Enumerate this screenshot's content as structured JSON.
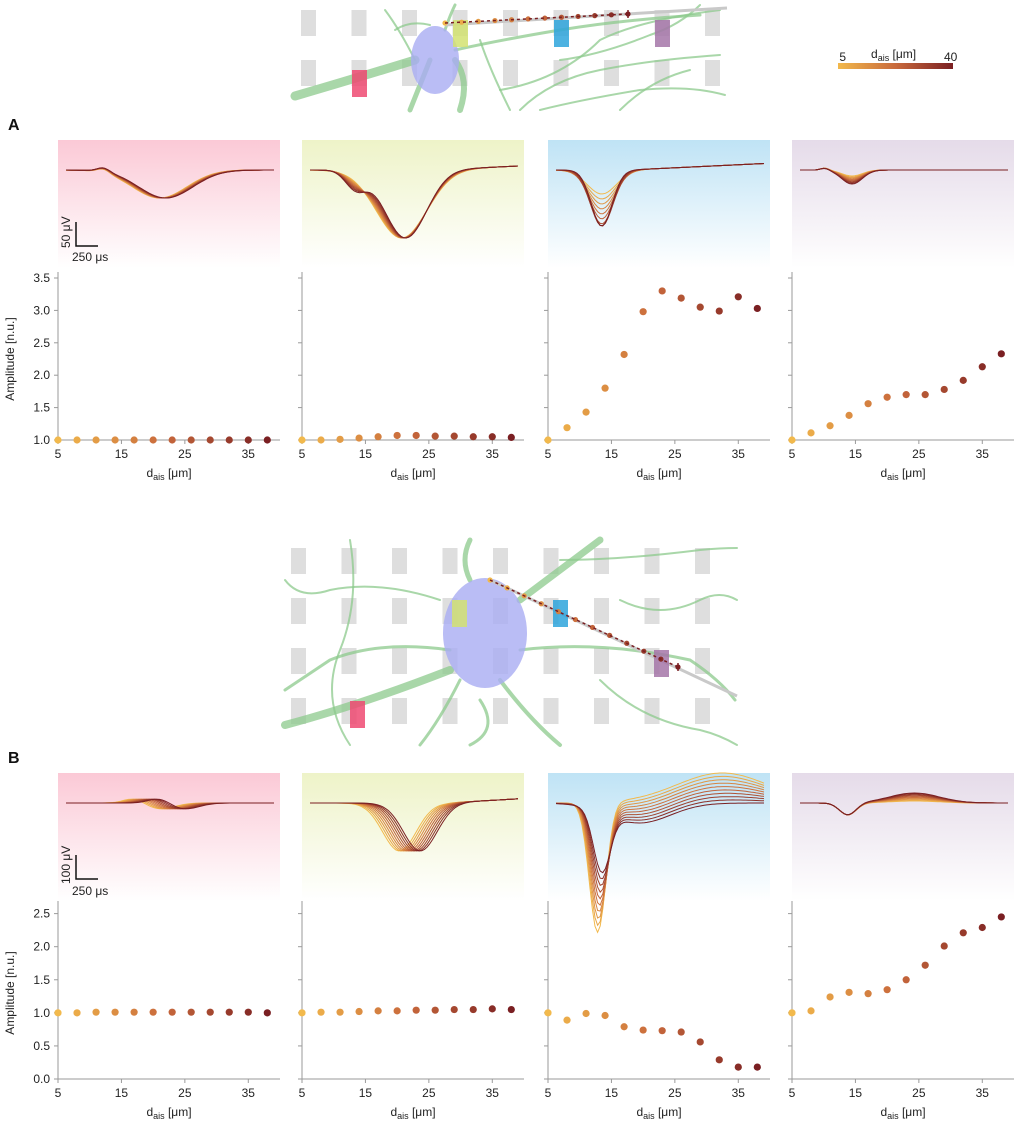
{
  "colors": {
    "scale_start": "#f2b94c",
    "scale_end": "#7a1f22",
    "electrode_red": "#ee4a72",
    "electrode_yellow": "#d2e271",
    "electrode_blue": "#2ea4dc",
    "electrode_purple": "#a576a8",
    "soma": "#a9acf3",
    "dendrite": "#8cc98c",
    "grid_pad": "#dedede",
    "axis": "#9a9a9a"
  },
  "colorbar": {
    "label_main": "d",
    "label_sub": "ais",
    "label_unit": " [μm]",
    "min_label": "5",
    "max_label": "40"
  },
  "panels": [
    {
      "letter": "A",
      "scalebar": {
        "voltage": "50 μV",
        "time": "250 μs"
      }
    },
    {
      "letter": "B",
      "scalebar": {
        "voltage": "100 μV",
        "time": "250 μs"
      }
    }
  ],
  "chart_data": [
    {
      "type": "scatter",
      "panel": "A",
      "ylabel": "Amplitude [n.u.]",
      "xlabel_main": "d",
      "xlabel_sub": "ais",
      "xlabel_unit": " [μm]",
      "xlim": [
        5,
        40
      ],
      "xticks": [
        "5",
        "15",
        "25",
        "35"
      ],
      "ylim": [
        1.0,
        3.5
      ],
      "yticks": [
        "1.0",
        "1.5",
        "2.0",
        "2.5",
        "3.0",
        "3.5"
      ],
      "x": [
        5,
        8,
        11,
        14,
        17,
        20,
        23,
        26,
        29,
        32,
        35,
        38
      ],
      "series": [
        {
          "name": "red electrode",
          "values": [
            1.0,
            1.0,
            1.0,
            1.0,
            1.0,
            1.0,
            1.0,
            1.0,
            1.0,
            1.0,
            1.0,
            1.0
          ]
        },
        {
          "name": "yellow electrode",
          "values": [
            1.0,
            1.0,
            1.01,
            1.03,
            1.05,
            1.07,
            1.07,
            1.06,
            1.06,
            1.05,
            1.05,
            1.04
          ]
        },
        {
          "name": "blue electrode",
          "values": [
            1.0,
            1.19,
            1.43,
            1.8,
            2.32,
            2.98,
            3.3,
            3.19,
            3.05,
            2.99,
            3.21,
            3.03
          ]
        },
        {
          "name": "purple electrode",
          "values": [
            1.0,
            1.11,
            1.22,
            1.38,
            1.56,
            1.66,
            1.7,
            1.7,
            1.78,
            1.92,
            2.13,
            2.33
          ]
        }
      ]
    },
    {
      "type": "scatter",
      "panel": "B",
      "ylabel": "Amplitude [n.u.]",
      "xlabel_main": "d",
      "xlabel_sub": "ais",
      "xlabel_unit": " [μm]",
      "xlim": [
        5,
        40
      ],
      "xticks": [
        "5",
        "15",
        "25",
        "35"
      ],
      "ylim": [
        0.0,
        2.6
      ],
      "yticks": [
        "0.0",
        "0.5",
        "1.0",
        "1.5",
        "2.0",
        "2.5"
      ],
      "x": [
        5,
        8,
        11,
        14,
        17,
        20,
        23,
        26,
        29,
        32,
        35,
        38
      ],
      "series": [
        {
          "name": "red electrode",
          "values": [
            1.0,
            1.0,
            1.01,
            1.01,
            1.01,
            1.01,
            1.01,
            1.01,
            1.01,
            1.01,
            1.01,
            1.0
          ]
        },
        {
          "name": "yellow electrode",
          "values": [
            1.0,
            1.01,
            1.01,
            1.02,
            1.03,
            1.03,
            1.04,
            1.04,
            1.05,
            1.05,
            1.06,
            1.05
          ]
        },
        {
          "name": "blue electrode",
          "values": [
            1.0,
            0.89,
            0.99,
            0.96,
            0.79,
            0.74,
            0.73,
            0.71,
            0.56,
            0.29,
            0.18,
            0.18
          ]
        },
        {
          "name": "purple electrode",
          "values": [
            1.0,
            1.03,
            1.24,
            1.31,
            1.29,
            1.35,
            1.5,
            1.72,
            2.01,
            2.21,
            2.29,
            2.45
          ]
        }
      ]
    }
  ]
}
